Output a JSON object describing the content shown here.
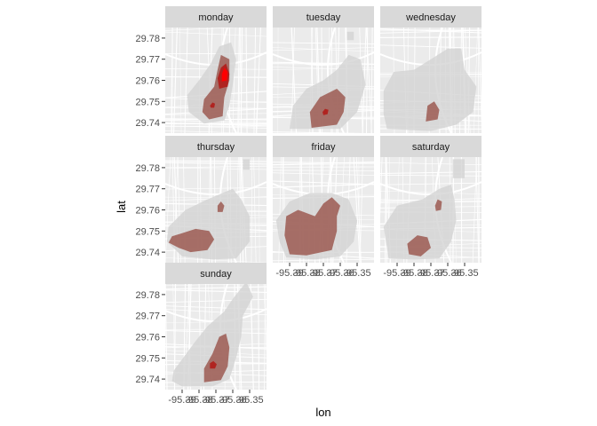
{
  "chart_data": {
    "type": "heatmap",
    "subtype": "faceted-2d-density-over-street-map",
    "xlabel": "lon",
    "ylabel": "lat",
    "xlim": [
      -95.4,
      -95.34
    ],
    "ylim": [
      29.735,
      29.785
    ],
    "x_tick_labels": [
      "-95.39",
      "-95.38",
      "-95.37",
      "-95.36",
      "-95.35"
    ],
    "y_tick_labels": [
      "29.78",
      "29.77",
      "29.76",
      "29.75",
      "29.74"
    ],
    "y_tick_values": [
      29.78,
      29.77,
      29.76,
      29.75,
      29.74
    ],
    "grid": true,
    "legend": "none",
    "colors": {
      "panel_bg": "#ebebeb",
      "strip_bg": "#d9d9d9",
      "map_roads": "#ffffff",
      "low_density": "#d3d3d3",
      "mid_density": "#9c5a52",
      "high_density": "#b0201c",
      "peak_density": "#ff0000"
    },
    "facets": [
      {
        "label": "monday",
        "regions": [
          {
            "level": "low",
            "points": [
              [
                -95.377,
                29.7395
              ],
              [
                -95.365,
                29.741
              ],
              [
                -95.362,
                29.748
              ],
              [
                -95.36,
                29.758
              ],
              [
                -95.358,
                29.77
              ],
              [
                -95.361,
                29.778
              ],
              [
                -95.368,
                29.776
              ],
              [
                -95.373,
                29.768
              ],
              [
                -95.38,
                29.76
              ],
              [
                -95.387,
                29.753
              ],
              [
                -95.386,
                29.745
              ]
            ]
          },
          {
            "level": "mid",
            "points": [
              [
                -95.374,
                29.7415
              ],
              [
                -95.366,
                29.743
              ],
              [
                -95.365,
                29.752
              ],
              [
                -95.362,
                29.76
              ],
              [
                -95.362,
                29.77
              ],
              [
                -95.367,
                29.772
              ],
              [
                -95.369,
                29.765
              ],
              [
                -95.371,
                29.757
              ],
              [
                -95.377,
                29.751
              ],
              [
                -95.378,
                29.745
              ]
            ]
          },
          {
            "level": "high",
            "points": [
              [
                -95.368,
                29.756
              ],
              [
                -95.363,
                29.757
              ],
              [
                -95.362,
                29.763
              ],
              [
                -95.364,
                29.768
              ],
              [
                -95.367,
                29.766
              ],
              [
                -95.369,
                29.761
              ]
            ]
          },
          {
            "level": "peak",
            "points": [
              [
                -95.3665,
                29.7595
              ],
              [
                -95.3635,
                29.76
              ],
              [
                -95.363,
                29.764
              ],
              [
                -95.365,
                29.766
              ],
              [
                -95.3665,
                29.763
              ]
            ]
          },
          {
            "level": "high",
            "points": [
              [
                -95.373,
                29.747
              ],
              [
                -95.371,
                29.747
              ],
              [
                -95.3705,
                29.749
              ],
              [
                -95.372,
                29.7495
              ],
              [
                -95.3735,
                29.748
              ]
            ]
          }
        ]
      },
      {
        "label": "tuesday",
        "regions": [
          {
            "level": "low",
            "points": [
              [
                -95.39,
                29.737
              ],
              [
                -95.36,
                29.737
              ],
              [
                -95.35,
                29.745
              ],
              [
                -95.345,
                29.758
              ],
              [
                -95.348,
                29.77
              ],
              [
                -95.355,
                29.772
              ],
              [
                -95.362,
                29.765
              ],
              [
                -95.37,
                29.76
              ],
              [
                -95.38,
                29.756
              ],
              [
                -95.388,
                29.748
              ]
            ]
          },
          {
            "level": "low",
            "points": [
              [
                -95.356,
                29.779
              ],
              [
                -95.352,
                29.779
              ],
              [
                -95.352,
                29.783
              ],
              [
                -95.356,
                29.783
              ]
            ]
          },
          {
            "level": "mid",
            "points": [
              [
                -95.377,
                29.7375
              ],
              [
                -95.362,
                29.739
              ],
              [
                -95.358,
                29.745
              ],
              [
                -95.357,
                29.752
              ],
              [
                -95.362,
                29.756
              ],
              [
                -95.372,
                29.752
              ],
              [
                -95.378,
                29.745
              ]
            ]
          },
          {
            "level": "high",
            "points": [
              [
                -95.37,
                29.7435
              ],
              [
                -95.3675,
                29.744
              ],
              [
                -95.367,
                29.746
              ],
              [
                -95.369,
                29.7465
              ],
              [
                -95.3705,
                29.745
              ]
            ]
          }
        ]
      },
      {
        "label": "wednesday",
        "regions": [
          {
            "level": "low",
            "points": [
              [
                -95.398,
                29.744
              ],
              [
                -95.396,
                29.737
              ],
              [
                -95.37,
                29.736
              ],
              [
                -95.355,
                29.739
              ],
              [
                -95.345,
                29.745
              ],
              [
                -95.343,
                29.757
              ],
              [
                -95.35,
                29.765
              ],
              [
                -95.352,
                29.775
              ],
              [
                -95.36,
                29.775
              ],
              [
                -95.37,
                29.77
              ],
              [
                -95.38,
                29.765
              ],
              [
                -95.392,
                29.764
              ],
              [
                -95.398,
                29.755
              ]
            ]
          },
          {
            "level": "mid",
            "points": [
              [
                -95.373,
                29.7405
              ],
              [
                -95.366,
                29.7415
              ],
              [
                -95.365,
                29.746
              ],
              [
                -95.368,
                29.75
              ],
              [
                -95.372,
                29.748
              ]
            ]
          }
        ]
      },
      {
        "label": "thursday",
        "regions": [
          {
            "level": "low",
            "points": [
              [
                -95.39,
                29.738
              ],
              [
                -95.372,
                29.7365
              ],
              [
                -95.358,
                29.737
              ],
              [
                -95.35,
                29.745
              ],
              [
                -95.35,
                29.757
              ],
              [
                -95.355,
                29.765
              ],
              [
                -95.36,
                29.77
              ],
              [
                -95.375,
                29.765
              ],
              [
                -95.388,
                29.76
              ],
              [
                -95.398,
                29.752
              ],
              [
                -95.399,
                29.745
              ]
            ]
          },
          {
            "level": "low",
            "points": [
              [
                -95.354,
                29.779
              ],
              [
                -95.35,
                29.779
              ],
              [
                -95.35,
                29.784
              ],
              [
                -95.354,
                29.784
              ]
            ]
          },
          {
            "level": "mid",
            "points": [
              [
                -95.398,
                29.7445
              ],
              [
                -95.392,
                29.742
              ],
              [
                -95.385,
                29.74
              ],
              [
                -95.375,
                29.741
              ],
              [
                -95.371,
                29.746
              ],
              [
                -95.374,
                29.75
              ],
              [
                -95.382,
                29.751
              ],
              [
                -95.39,
                29.749
              ],
              [
                -95.396,
                29.7475
              ]
            ]
          },
          {
            "level": "mid",
            "points": [
              [
                -95.369,
                29.759
              ],
              [
                -95.366,
                29.759
              ],
              [
                -95.365,
                29.762
              ],
              [
                -95.367,
                29.764
              ],
              [
                -95.369,
                29.762
              ]
            ]
          }
        ]
      },
      {
        "label": "friday",
        "regions": [
          {
            "level": "low",
            "points": [
              [
                -95.392,
                29.7375
              ],
              [
                -95.375,
                29.7365
              ],
              [
                -95.36,
                29.738
              ],
              [
                -95.352,
                29.745
              ],
              [
                -95.35,
                29.755
              ],
              [
                -95.355,
                29.765
              ],
              [
                -95.365,
                29.768
              ],
              [
                -95.378,
                29.768
              ],
              [
                -95.39,
                29.764
              ],
              [
                -95.398,
                29.755
              ],
              [
                -95.396,
                29.745
              ]
            ]
          },
          {
            "level": "mid",
            "points": [
              [
                -95.39,
                29.739
              ],
              [
                -95.38,
                29.7385
              ],
              [
                -95.365,
                29.741
              ],
              [
                -95.362,
                29.75
              ],
              [
                -95.362,
                29.757
              ],
              [
                -95.36,
                29.762
              ],
              [
                -95.365,
                29.766
              ],
              [
                -95.37,
                29.763
              ],
              [
                -95.375,
                29.757
              ],
              [
                -95.385,
                29.76
              ],
              [
                -95.392,
                29.757
              ],
              [
                -95.393,
                29.748
              ]
            ]
          }
        ]
      },
      {
        "label": "saturday",
        "regions": [
          {
            "level": "low",
            "points": [
              [
                -95.398,
                29.752
              ],
              [
                -95.395,
                29.737
              ],
              [
                -95.38,
                29.7365
              ],
              [
                -95.365,
                29.737
              ],
              [
                -95.358,
                29.745
              ],
              [
                -95.355,
                29.755
              ],
              [
                -95.356,
                29.765
              ],
              [
                -95.358,
                29.772
              ],
              [
                -95.365,
                29.77
              ],
              [
                -95.375,
                29.765
              ],
              [
                -95.39,
                29.762
              ]
            ]
          },
          {
            "level": "low",
            "points": [
              [
                -95.357,
                29.775
              ],
              [
                -95.35,
                29.775
              ],
              [
                -95.35,
                29.784
              ],
              [
                -95.357,
                29.784
              ]
            ]
          },
          {
            "level": "mid",
            "points": [
              [
                -95.383,
                29.739
              ],
              [
                -95.376,
                29.738
              ],
              [
                -95.37,
                29.742
              ],
              [
                -95.372,
                29.747
              ],
              [
                -95.378,
                29.748
              ],
              [
                -95.384,
                29.744
              ]
            ]
          },
          {
            "level": "mid",
            "points": [
              [
                -95.367,
                29.7595
              ],
              [
                -95.364,
                29.76
              ],
              [
                -95.3635,
                29.764
              ],
              [
                -95.366,
                29.765
              ],
              [
                -95.3675,
                29.762
              ]
            ]
          }
        ]
      },
      {
        "label": "sunday",
        "regions": [
          {
            "level": "low",
            "points": [
              [
                -95.39,
                29.7365
              ],
              [
                -95.372,
                29.7365
              ],
              [
                -95.362,
                29.74
              ],
              [
                -95.358,
                29.75
              ],
              [
                -95.355,
                29.76
              ],
              [
                -95.354,
                29.77
              ],
              [
                -95.348,
                29.779
              ],
              [
                -95.352,
                29.786
              ],
              [
                -95.36,
                29.778
              ],
              [
                -95.365,
                29.772
              ],
              [
                -95.375,
                29.765
              ],
              [
                -95.382,
                29.758
              ],
              [
                -95.395,
                29.744
              ],
              [
                -95.396,
                29.739
              ]
            ]
          },
          {
            "level": "mid",
            "points": [
              [
                -95.377,
                29.7385
              ],
              [
                -95.367,
                29.7395
              ],
              [
                -95.363,
                29.746
              ],
              [
                -95.362,
                29.755
              ],
              [
                -95.364,
                29.7615
              ],
              [
                -95.368,
                29.76
              ],
              [
                -95.372,
                29.752
              ],
              [
                -95.377,
                29.745
              ]
            ]
          },
          {
            "level": "high",
            "points": [
              [
                -95.3735,
                29.745
              ],
              [
                -95.3705,
                29.745
              ],
              [
                -95.3695,
                29.747
              ],
              [
                -95.3715,
                29.7485
              ],
              [
                -95.3735,
                29.7475
              ]
            ]
          }
        ]
      }
    ]
  }
}
